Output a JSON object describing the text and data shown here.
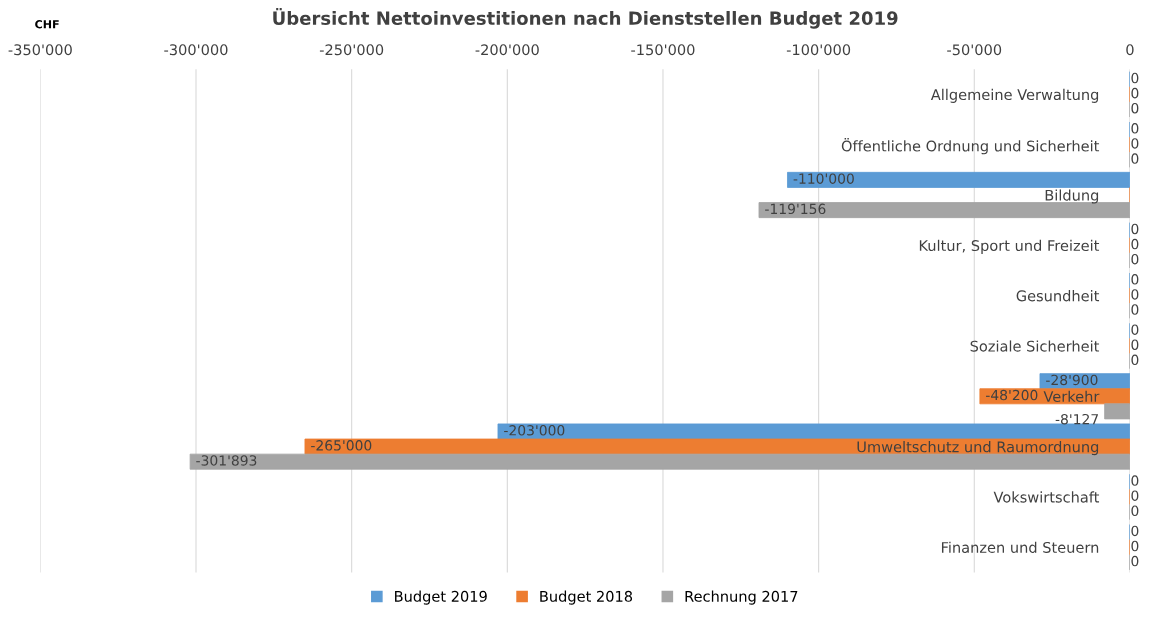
{
  "chart_data": {
    "type": "bar",
    "orientation": "horizontal",
    "title": "Übersicht Nettoinvestitionen nach Dienststellen Budget 2019",
    "annotations": [
      "CHF"
    ],
    "categories": [
      "Allgemeine Verwaltung",
      "Öffentliche Ordnung und Sicherheit",
      "Bildung",
      "Kultur, Sport und Freizeit",
      "Gesundheit",
      "Soziale Sicherheit",
      "Verkehr",
      "Umweltschutz und Raumordnung",
      "Vokswirtschaft",
      "Finanzen und Steuern"
    ],
    "series": [
      {
        "name": "Budget 2019",
        "color": "#5b9bd5",
        "values": [
          0,
          0,
          -110000,
          0,
          0,
          0,
          -28900,
          -203000,
          0,
          0
        ],
        "value_labels": [
          "0",
          "0",
          "-110'000",
          "0",
          "0",
          "0",
          "-28'900",
          "-203'000",
          "0",
          "0"
        ]
      },
      {
        "name": "Budget 2018",
        "color": "#ed7d31",
        "values": [
          0,
          0,
          0,
          0,
          0,
          0,
          -48200,
          -265000,
          0,
          0
        ],
        "value_labels": [
          "0",
          "0",
          null,
          "0",
          "0",
          "0",
          "-48'200",
          "-265'000",
          "0",
          "0"
        ]
      },
      {
        "name": "Rechnung 2017",
        "color": "#a5a5a5",
        "values": [
          0,
          0,
          -119156,
          0,
          0,
          0,
          -8127,
          -301893,
          0,
          0
        ],
        "value_labels": [
          "0",
          "0",
          "-119'156",
          "0",
          "0",
          "0",
          "-8'127",
          "-301'893",
          "0",
          "0"
        ]
      }
    ],
    "xlim": [
      -350000,
      0
    ],
    "xticks": [
      {
        "value": -350000,
        "label": "-350'000"
      },
      {
        "value": -300000,
        "label": "-300'000"
      },
      {
        "value": -250000,
        "label": "-250'000"
      },
      {
        "value": -200000,
        "label": "-200'000"
      },
      {
        "value": -150000,
        "label": "-150'000"
      },
      {
        "value": -100000,
        "label": "-100'000"
      },
      {
        "value": -50000,
        "label": "-50'000"
      },
      0
    ],
    "grid": "x",
    "legend": "bottom"
  }
}
